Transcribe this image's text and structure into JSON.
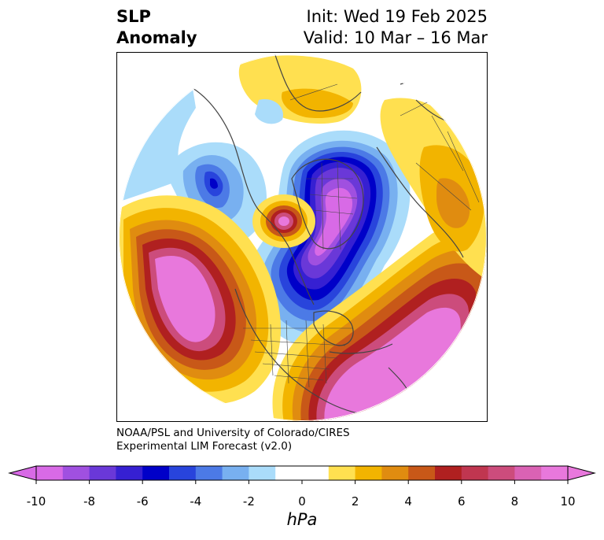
{
  "title": {
    "variable_line1": "SLP",
    "variable_line2": "Anomaly",
    "init": "Init: Wed 19 Feb 2025",
    "valid": "Valid: 10 Mar – 16 Mar"
  },
  "credit": {
    "line1": "NOAA/PSL and University of Colorado/CIRES",
    "line2": "Experimental LIM Forecast (v2.0)"
  },
  "colorbar": {
    "units": "hPa",
    "tick_labels": [
      "-10",
      "-8",
      "-6",
      "-4",
      "-2",
      "0",
      "2",
      "4",
      "6",
      "8",
      "10"
    ],
    "levels": [
      -10,
      -9,
      -8,
      -7,
      -6,
      -5,
      -4,
      -3,
      -2,
      -1,
      1,
      2,
      3,
      4,
      5,
      6,
      7,
      8,
      9,
      10
    ],
    "colors": {
      "below_min": "#d86ae6",
      "bins": [
        "#d86ae6",
        "#a050e0",
        "#6a38d8",
        "#3620d2",
        "#0000c8",
        "#2844dc",
        "#4c7ae6",
        "#78b0f0",
        "#aadcfa",
        "#ffffff",
        "#ffe050",
        "#f2b400",
        "#e08c10",
        "#c85818",
        "#b02020",
        "#c03650",
        "#cc4c7c",
        "#da62b4",
        "#e878dc"
      ],
      "above_max": "#e878dc"
    }
  },
  "map": {
    "projection": "north-polar-stereographic",
    "field": "sea level pressure anomaly",
    "features": [
      {
        "name": "Alaska / Bering low",
        "sign": "negative"
      },
      {
        "name": "Arctic / Greenland low",
        "sign": "negative"
      },
      {
        "name": "North Pacific high",
        "sign": "positive"
      },
      {
        "name": "North Atlantic / eastern US high",
        "sign": "positive"
      },
      {
        "name": "Siberian high",
        "sign": "positive"
      }
    ]
  }
}
